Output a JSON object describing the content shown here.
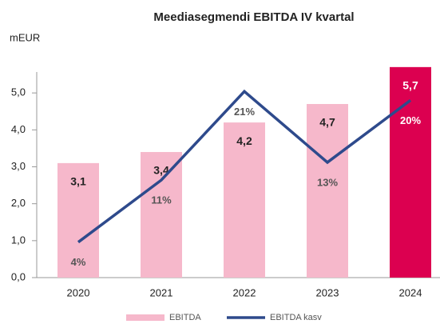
{
  "chart_data": {
    "type": "bar_line",
    "title": "Meediasegmendi EBITDA IV kvartal",
    "y_axis_label": "mEUR",
    "categories": [
      "2020",
      "2021",
      "2022",
      "2023",
      "2024"
    ],
    "ylim": [
      0,
      6
    ],
    "yticks": [
      {
        "value": 0,
        "label": "0,0"
      },
      {
        "value": 1,
        "label": "1,0"
      },
      {
        "value": 2,
        "label": "2,0"
      },
      {
        "value": 3,
        "label": "3,0"
      },
      {
        "value": 4,
        "label": "4,0"
      },
      {
        "value": 5,
        "label": "5,0"
      }
    ],
    "y2lim": [
      0,
      25
    ],
    "series": [
      {
        "name": "EBITDA",
        "type": "bar",
        "color": "#f6b8cb",
        "colors": [
          "#f6b8cb",
          "#f6b8cb",
          "#f6b8cb",
          "#f6b8cb",
          "#dc0050"
        ],
        "values": [
          3.1,
          3.4,
          4.2,
          4.7,
          5.7
        ],
        "value_labels": [
          "3,1",
          "3,4",
          "4,2",
          "4,7",
          "5,7"
        ]
      },
      {
        "name": "EBITDA kasv",
        "type": "line",
        "axis": "y2",
        "color": "#2e4a8c",
        "values": [
          4,
          11,
          21,
          13,
          20
        ],
        "value_labels": [
          "4%",
          "11%",
          "21%",
          "13%",
          "20%"
        ]
      }
    ],
    "legend": "bottom"
  }
}
